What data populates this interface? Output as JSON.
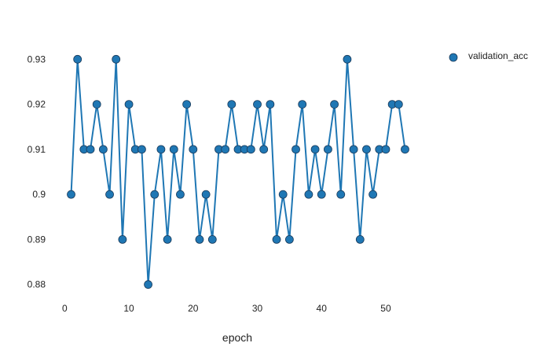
{
  "chart_data": {
    "type": "line",
    "title": "",
    "xlabel": "epoch",
    "ylabel": "",
    "xlim": [
      -2,
      56
    ],
    "ylim": [
      0.8775,
      0.9325
    ],
    "x_ticks": [
      0,
      10,
      20,
      30,
      40,
      50
    ],
    "y_ticks": [
      0.88,
      0.89,
      0.9,
      0.91,
      0.92,
      0.93
    ],
    "x_tick_labels": [
      "0",
      "10",
      "20",
      "30",
      "40",
      "50"
    ],
    "y_tick_labels": [
      "0.88",
      "0.89",
      "0.9",
      "0.91",
      "0.92",
      "0.93"
    ],
    "grid": false,
    "legend_position": "top-right",
    "series": [
      {
        "name": "validation_acc",
        "color": "#1f77b4",
        "marker": "circle",
        "x": [
          1,
          2,
          3,
          4,
          5,
          6,
          7,
          8,
          9,
          10,
          11,
          12,
          13,
          14,
          15,
          16,
          17,
          18,
          19,
          20,
          21,
          22,
          23,
          24,
          25,
          26,
          27,
          28,
          29,
          30,
          31,
          32,
          33,
          34,
          35,
          36,
          37,
          38,
          39,
          40,
          41,
          42,
          43,
          44,
          45,
          46,
          47,
          48,
          49,
          50,
          51,
          52,
          53
        ],
        "values": [
          0.9,
          0.93,
          0.91,
          0.91,
          0.92,
          0.91,
          0.9,
          0.93,
          0.89,
          0.92,
          0.91,
          0.91,
          0.88,
          0.9,
          0.91,
          0.89,
          0.91,
          0.9,
          0.92,
          0.91,
          0.89,
          0.9,
          0.89,
          0.91,
          0.91,
          0.92,
          0.91,
          0.91,
          0.91,
          0.92,
          0.91,
          0.92,
          0.89,
          0.9,
          0.89,
          0.91,
          0.92,
          0.9,
          0.91,
          0.9,
          0.91,
          0.92,
          0.9,
          0.93,
          0.91,
          0.89,
          0.91,
          0.9,
          0.91,
          0.91,
          0.92,
          0.92,
          0.91
        ]
      }
    ]
  }
}
